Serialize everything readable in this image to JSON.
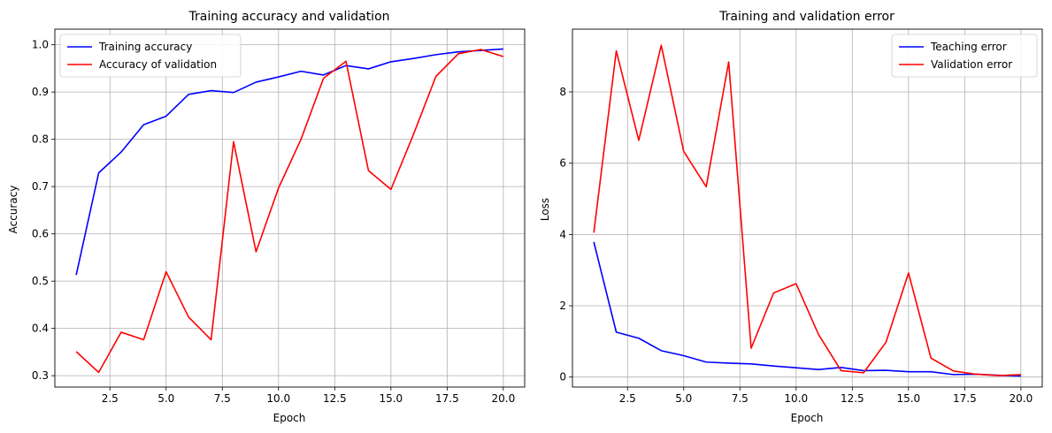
{
  "chart_data": [
    {
      "type": "line",
      "title": "Training accuracy and validation",
      "xlabel": "Epoch",
      "ylabel": "Accuracy",
      "xlim": [
        0.05,
        20.95
      ],
      "ylim": [
        0.276,
        1.033
      ],
      "xticks": [
        2.5,
        5.0,
        7.5,
        10.0,
        12.5,
        15.0,
        17.5,
        20.0
      ],
      "xtick_labels": [
        "2.5",
        "5.0",
        "7.5",
        "10.0",
        "12.5",
        "15.0",
        "17.5",
        "20.0"
      ],
      "yticks": [
        0.3,
        0.4,
        0.5,
        0.6,
        0.7,
        0.8,
        0.9,
        1.0
      ],
      "ytick_labels": [
        "0.3",
        "0.4",
        "0.5",
        "0.6",
        "0.7",
        "0.8",
        "0.9",
        "1.0"
      ],
      "grid": true,
      "legend_position": "top-left",
      "x": [
        1,
        2,
        3,
        4,
        5,
        6,
        7,
        8,
        9,
        10,
        11,
        12,
        13,
        14,
        15,
        16,
        17,
        18,
        19,
        20
      ],
      "series": [
        {
          "name": "Training accuracy",
          "color": "#0000ff",
          "values": [
            0.513,
            0.729,
            0.773,
            0.831,
            0.849,
            0.895,
            0.903,
            0.899,
            0.921,
            0.932,
            0.944,
            0.936,
            0.956,
            0.949,
            0.964,
            0.971,
            0.979,
            0.985,
            0.988,
            0.991
          ]
        },
        {
          "name": "Accuracy of validation",
          "color": "#ff0000",
          "values": [
            0.351,
            0.307,
            0.392,
            0.376,
            0.52,
            0.424,
            0.376,
            0.795,
            0.562,
            0.697,
            0.8,
            0.929,
            0.965,
            0.734,
            0.694,
            0.81,
            0.933,
            0.981,
            0.99,
            0.975
          ]
        }
      ]
    },
    {
      "type": "line",
      "title": "Training and validation error",
      "xlabel": "Epoch",
      "ylabel": "Loss",
      "xlim": [
        0.05,
        20.95
      ],
      "ylim": [
        -0.28,
        9.76
      ],
      "xticks": [
        2.5,
        5.0,
        7.5,
        10.0,
        12.5,
        15.0,
        17.5,
        20.0
      ],
      "xtick_labels": [
        "2.5",
        "5.0",
        "7.5",
        "10.0",
        "12.5",
        "15.0",
        "17.5",
        "20.0"
      ],
      "yticks": [
        0,
        2,
        4,
        6,
        8
      ],
      "ytick_labels": [
        "0",
        "2",
        "4",
        "6",
        "8"
      ],
      "grid": true,
      "legend_position": "top-right",
      "x": [
        1,
        2,
        3,
        4,
        5,
        6,
        7,
        8,
        9,
        10,
        11,
        12,
        13,
        14,
        15,
        16,
        17,
        18,
        19,
        20
      ],
      "series": [
        {
          "name": "Teaching error",
          "color": "#0000ff",
          "values": [
            3.79,
            1.26,
            1.09,
            0.74,
            0.6,
            0.42,
            0.39,
            0.37,
            0.31,
            0.26,
            0.21,
            0.27,
            0.18,
            0.19,
            0.15,
            0.15,
            0.07,
            0.08,
            0.05,
            0.03
          ]
        },
        {
          "name": "Validation error",
          "color": "#ff0000",
          "values": [
            4.05,
            9.15,
            6.64,
            9.31,
            6.33,
            5.34,
            8.84,
            0.81,
            2.36,
            2.62,
            1.19,
            0.18,
            0.12,
            0.98,
            2.92,
            0.53,
            0.17,
            0.08,
            0.04,
            0.07
          ]
        }
      ]
    }
  ]
}
